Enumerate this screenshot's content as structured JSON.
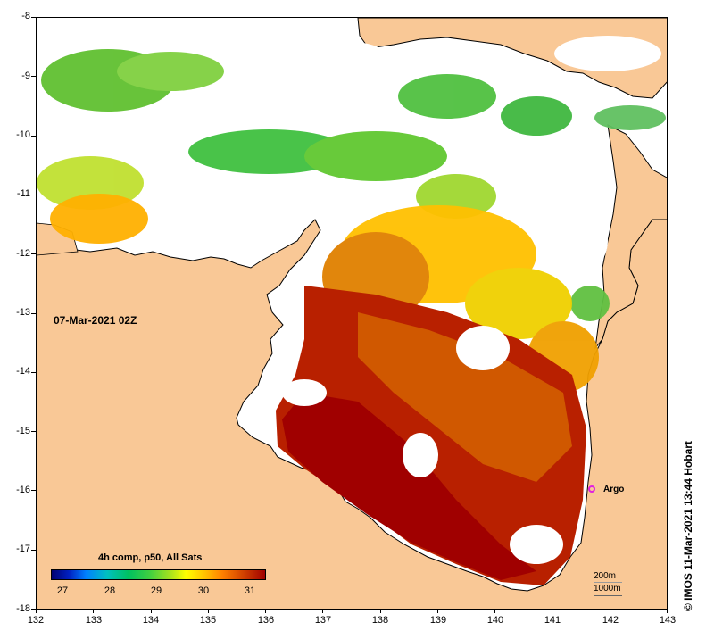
{
  "map": {
    "date_label": "07-Mar-2021 02Z",
    "x_ticks": [
      "132",
      "133",
      "134",
      "135",
      "136",
      "137",
      "138",
      "139",
      "140",
      "141",
      "142",
      "143"
    ],
    "y_ticks": [
      "-8",
      "-9",
      "-10",
      "-11",
      "-12",
      "-13",
      "-14",
      "-15",
      "-16",
      "-17",
      "-18"
    ],
    "x_range": [
      132,
      143
    ],
    "y_range": [
      -18,
      -8
    ],
    "land_color": "#f9c896",
    "no_data_color": "#ffffff"
  },
  "legend": {
    "title": "4h comp, p50, All Sats",
    "ticks": [
      "27",
      "28",
      "29",
      "30",
      "31"
    ],
    "colors": [
      "#000070",
      "#0020c0",
      "#0080ff",
      "#00c0c0",
      "#00c060",
      "#40d040",
      "#a0e020",
      "#ffff00",
      "#ffc000",
      "#ff8000",
      "#d04000",
      "#a00000"
    ]
  },
  "annotations": {
    "argo_label": "Argo",
    "argo_color": "#e020e0",
    "scale_200": "200m",
    "scale_1000": "1000m"
  },
  "credit": "© IMOS 11-Mar-2021 13:44 Hobart"
}
